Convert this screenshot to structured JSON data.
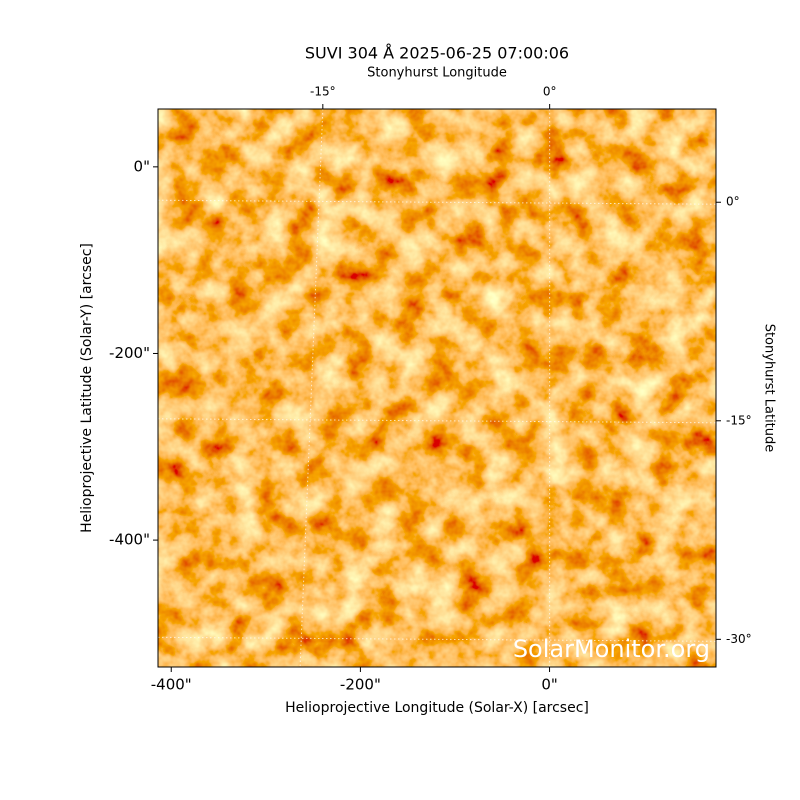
{
  "chart_data": {
    "type": "image",
    "title": "SUVI 304 Å 2025-06-25 07:00:06",
    "xlabel": "Helioprojective Longitude (Solar-X) [arcsec]",
    "ylabel": "Helioprojective Latitude (Solar-Y) [arcsec]",
    "x2label": "Stonyhurst Longitude",
    "y2label": "Stonyhurst Latitude",
    "watermark": "SolarMonitor.org",
    "xlim": [
      -414,
      176
    ],
    "ylim": [
      -536,
      62
    ],
    "xticks": [
      {
        "value": -400,
        "label": "-400\""
      },
      {
        "value": -200,
        "label": "-200\""
      },
      {
        "value": 0,
        "label": "0\""
      }
    ],
    "yticks": [
      {
        "value": -400,
        "label": "-400\""
      },
      {
        "value": -200,
        "label": "-200\""
      },
      {
        "value": 0,
        "label": "0\""
      }
    ],
    "x2lim": [
      -25.9,
      11.0
    ],
    "x2ticks": [
      {
        "value": -15,
        "label": "-15°"
      },
      {
        "value": 0,
        "label": "0°"
      }
    ],
    "y2lim": [
      -31.9,
      6.4
    ],
    "y2ticks": [
      {
        "value": 0,
        "label": "0°"
      },
      {
        "value": -15,
        "label": "-15°"
      },
      {
        "value": -30,
        "label": "-30°"
      }
    ],
    "grid": true
  }
}
